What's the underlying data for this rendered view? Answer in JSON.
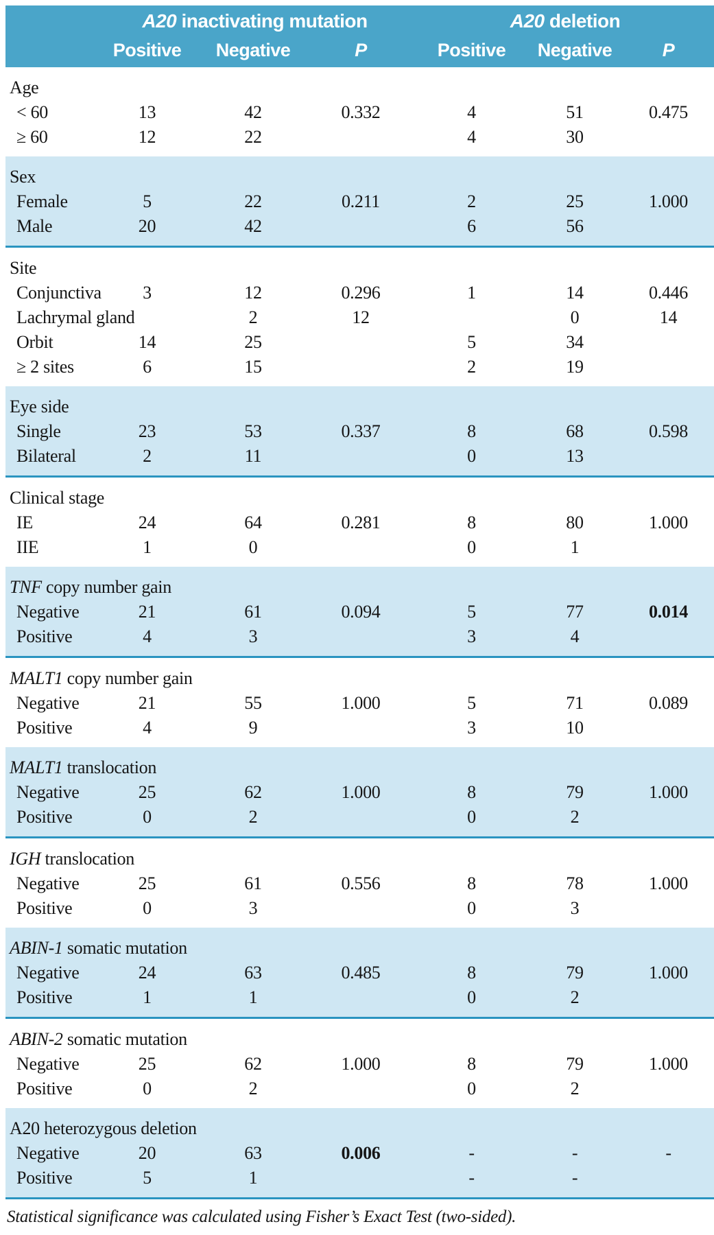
{
  "colors": {
    "header_bg": "#4aa5c9",
    "band_bg": "#cfe7f3",
    "rule": "#2a94c0",
    "text": "#161616"
  },
  "header": {
    "group1": {
      "italic": "A20",
      "text": " inactivating mutation"
    },
    "group2": {
      "italic": "A20",
      "text": " deletion"
    },
    "columns": [
      "Positive",
      "Negative",
      "P",
      "Positive",
      "Negative",
      "P"
    ]
  },
  "sections": [
    {
      "label": {
        "italic": "",
        "text": "Age"
      },
      "shade": "white",
      "rows": [
        {
          "label": "< 60",
          "cells": [
            "13",
            "42",
            "0.332",
            "4",
            "51",
            "0.475"
          ],
          "bold": []
        },
        {
          "label": "≥ 60",
          "cells": [
            "12",
            "22",
            "",
            "4",
            "30",
            ""
          ],
          "bold": []
        }
      ]
    },
    {
      "label": {
        "italic": "",
        "text": "Sex"
      },
      "shade": "blue",
      "rows": [
        {
          "label": "Female",
          "cells": [
            "5",
            "22",
            "0.211",
            "2",
            "25",
            "1.000"
          ],
          "bold": []
        },
        {
          "label": "Male",
          "cells": [
            "20",
            "42",
            "",
            "6",
            "56",
            ""
          ],
          "bold": []
        }
      ]
    },
    {
      "label": {
        "italic": "",
        "text": "Site"
      },
      "shade": "white",
      "rows": [
        {
          "label": "Conjunctiva",
          "cells": [
            "3",
            "12",
            "0.296",
            "1",
            "14",
            "0.446"
          ],
          "bold": []
        },
        {
          "label": "Lachrymal gland",
          "cells": [
            "",
            "2",
            "12",
            "",
            "0",
            "14"
          ],
          "bold": []
        },
        {
          "label": "Orbit",
          "cells": [
            "14",
            "25",
            "",
            "5",
            "34",
            ""
          ],
          "bold": []
        },
        {
          "label": "≥ 2 sites",
          "cells": [
            "6",
            "15",
            "",
            "2",
            "19",
            ""
          ],
          "bold": []
        }
      ]
    },
    {
      "label": {
        "italic": "",
        "text": "Eye side"
      },
      "shade": "blue",
      "rows": [
        {
          "label": "Single",
          "cells": [
            "23",
            "53",
            "0.337",
            "8",
            "68",
            "0.598"
          ],
          "bold": []
        },
        {
          "label": "Bilateral",
          "cells": [
            "2",
            "11",
            "",
            "0",
            "13",
            ""
          ],
          "bold": []
        }
      ]
    },
    {
      "label": {
        "italic": "",
        "text": "Clinical stage"
      },
      "shade": "white",
      "rows": [
        {
          "label": "IE",
          "cells": [
            "24",
            "64",
            "0.281",
            "8",
            "80",
            "1.000"
          ],
          "bold": []
        },
        {
          "label": "IIE",
          "cells": [
            "1",
            "0",
            "",
            "0",
            "1",
            ""
          ],
          "bold": []
        }
      ]
    },
    {
      "label": {
        "italic": "TNF",
        "text": " copy number gain"
      },
      "shade": "blue",
      "rows": [
        {
          "label": "Negative",
          "cells": [
            "21",
            "61",
            "0.094",
            "5",
            "77",
            "0.014"
          ],
          "bold": [
            5
          ]
        },
        {
          "label": "Positive",
          "cells": [
            "4",
            "3",
            "",
            "3",
            "4",
            ""
          ],
          "bold": []
        }
      ]
    },
    {
      "label": {
        "italic": "MALT1",
        "text": " copy number gain"
      },
      "shade": "white",
      "rows": [
        {
          "label": "Negative",
          "cells": [
            "21",
            "55",
            "1.000",
            "5",
            "71",
            "0.089"
          ],
          "bold": []
        },
        {
          "label": "Positive",
          "cells": [
            "4",
            "9",
            "",
            "3",
            "10",
            ""
          ],
          "bold": []
        }
      ]
    },
    {
      "label": {
        "italic": "MALT1",
        "text": " translocation"
      },
      "shade": "blue",
      "rows": [
        {
          "label": "Negative",
          "cells": [
            "25",
            "62",
            "1.000",
            "8",
            "79",
            "1.000"
          ],
          "bold": []
        },
        {
          "label": "Positive",
          "cells": [
            "0",
            "2",
            "",
            "0",
            "2",
            ""
          ],
          "bold": []
        }
      ]
    },
    {
      "label": {
        "italic": "IGH",
        "text": " translocation"
      },
      "shade": "white",
      "rows": [
        {
          "label": "Negative",
          "cells": [
            "25",
            "61",
            "0.556",
            "8",
            "78",
            "1.000"
          ],
          "bold": []
        },
        {
          "label": "Positive",
          "cells": [
            "0",
            "3",
            "",
            "0",
            "3",
            ""
          ],
          "bold": []
        }
      ]
    },
    {
      "label": {
        "italic": "ABIN-1",
        "text": " somatic mutation"
      },
      "shade": "blue",
      "rows": [
        {
          "label": "Negative",
          "cells": [
            "24",
            "63",
            "0.485",
            "8",
            "79",
            "1.000"
          ],
          "bold": []
        },
        {
          "label": "Positive",
          "cells": [
            "1",
            "1",
            "",
            "0",
            "2",
            ""
          ],
          "bold": []
        }
      ]
    },
    {
      "label": {
        "italic": "ABIN-2",
        "text": " somatic mutation"
      },
      "shade": "white",
      "rows": [
        {
          "label": "Negative",
          "cells": [
            "25",
            "62",
            "1.000",
            "8",
            "79",
            "1.000"
          ],
          "bold": []
        },
        {
          "label": "Positive",
          "cells": [
            "0",
            "2",
            "",
            "0",
            "2",
            ""
          ],
          "bold": []
        }
      ]
    },
    {
      "label": {
        "italic": "",
        "text": "A20 heterozygous deletion"
      },
      "shade": "blue",
      "rows": [
        {
          "label": "Negative",
          "cells": [
            "20",
            "63",
            "0.006",
            "-",
            "-",
            "-"
          ],
          "bold": [
            2
          ]
        },
        {
          "label": "Positive",
          "cells": [
            "5",
            "1",
            "",
            "-",
            "-",
            ""
          ],
          "bold": []
        }
      ]
    }
  ],
  "footer": "Statistical significance was calculated using Fisher’s Exact Test (two-sided)."
}
